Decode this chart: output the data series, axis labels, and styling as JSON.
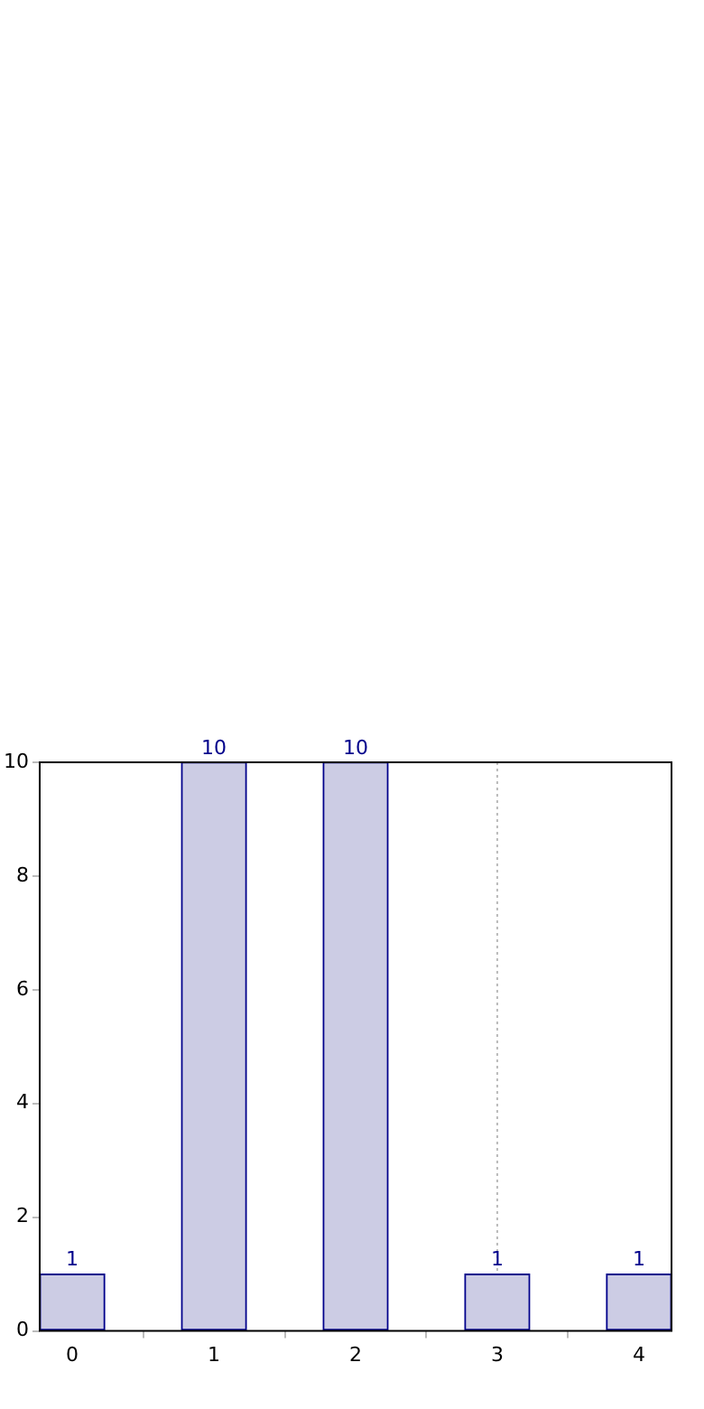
{
  "chart_data": {
    "type": "bar",
    "x": [
      0,
      1,
      2,
      3,
      4
    ],
    "values": [
      1,
      10,
      10,
      1,
      1
    ],
    "color": "#cccce4",
    "xlim": [
      -0.23,
      4.23
    ],
    "xticks": [
      0,
      1,
      2,
      3,
      4
    ],
    "ylim": [
      0,
      10
    ],
    "yticks": [
      0,
      2,
      4,
      6,
      8,
      10
    ],
    "data_labels": true,
    "grid": false,
    "legend": false,
    "ref_lines": [
      {
        "axis": "x",
        "value": 3,
        "color": "#bbbbbb",
        "line_style": "dotted"
      }
    ]
  }
}
